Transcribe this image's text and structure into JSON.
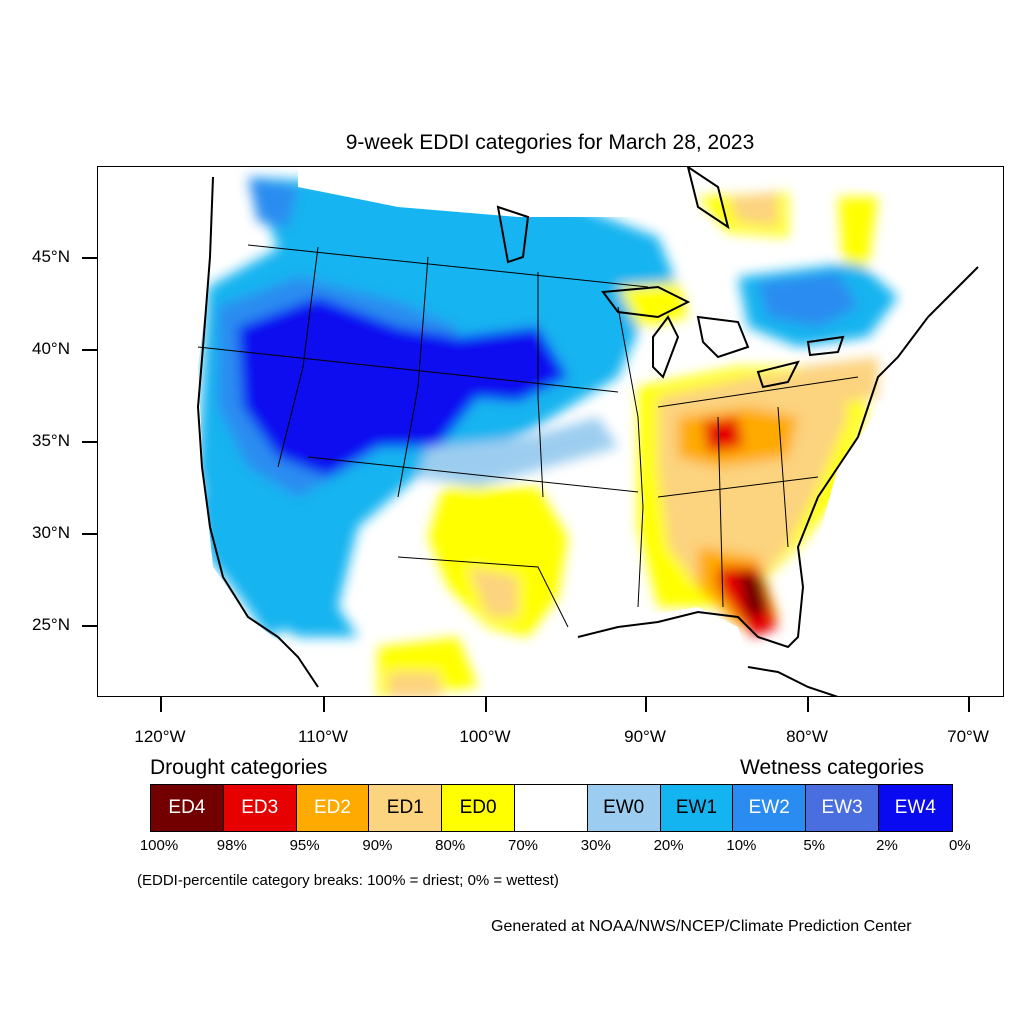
{
  "title": "9-week EDDI categories for March 28, 2023",
  "lat_labels": [
    "45°N",
    "40°N",
    "35°N",
    "30°N",
    "25°N"
  ],
  "lon_labels": [
    "120°W",
    "110°W",
    "100°W",
    "90°W",
    "80°W",
    "70°W"
  ],
  "legend": {
    "drought_heading": "Drought categories",
    "wetness_heading": "Wetness categories",
    "categories": [
      {
        "label": "ED4",
        "color": "#730000",
        "text_color": "#ffffff"
      },
      {
        "label": "ED3",
        "color": "#e60000",
        "text_color": "#ffffff"
      },
      {
        "label": "ED2",
        "color": "#ffaa00",
        "text_color": "#ffffff"
      },
      {
        "label": "ED1",
        "color": "#fcd37f",
        "text_color": "#000000"
      },
      {
        "label": "ED0",
        "color": "#ffff00",
        "text_color": "#000000"
      },
      {
        "label": "",
        "color": "#ffffff",
        "text_color": "#000000"
      },
      {
        "label": "EW0",
        "color": "#9ccdf0",
        "text_color": "#000000"
      },
      {
        "label": "EW1",
        "color": "#14b4f0",
        "text_color": "#000000"
      },
      {
        "label": "EW2",
        "color": "#2a8cf0",
        "text_color": "#ffffff"
      },
      {
        "label": "EW3",
        "color": "#4a6ee0",
        "text_color": "#ffffff"
      },
      {
        "label": "EW4",
        "color": "#0a0af0",
        "text_color": "#ffffff"
      }
    ],
    "percentiles": [
      "100%",
      "98%",
      "95%",
      "90%",
      "80%",
      "70%",
      "30%",
      "20%",
      "10%",
      "5%",
      "2%",
      "0%"
    ]
  },
  "note": "(EDDI-percentile category breaks: 100% = driest; 0% = wettest)",
  "credit": "Generated at NOAA/NWS/NCEP/Climate Prediction Center"
}
